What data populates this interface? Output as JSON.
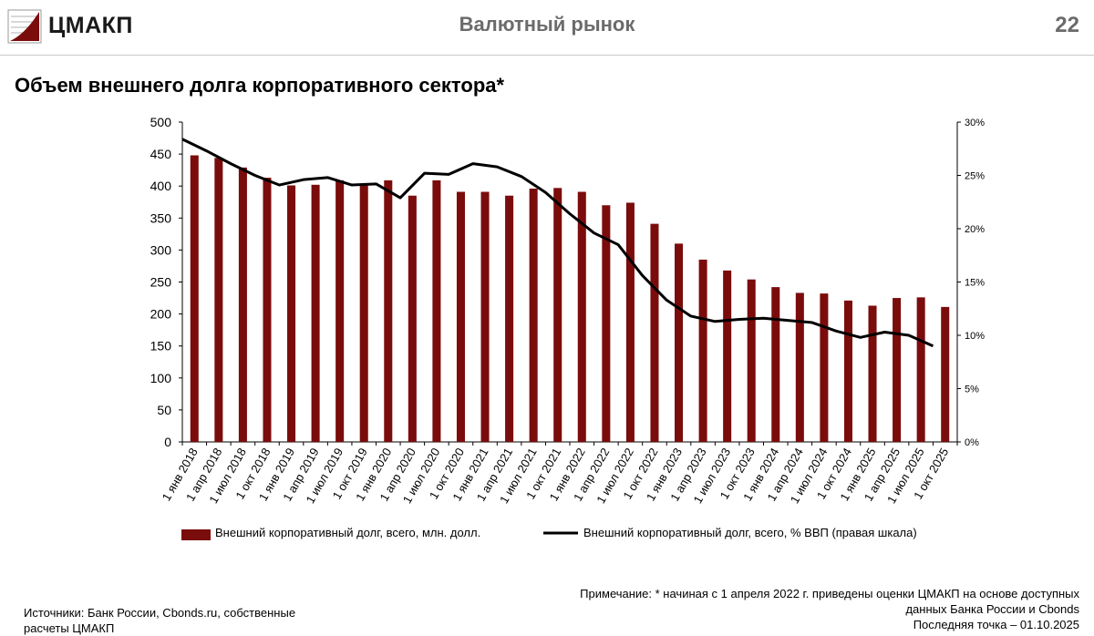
{
  "header": {
    "logo_text": "ЦМАКП",
    "section_title": "Валютный рынок",
    "page_number": "22"
  },
  "page_title": "Объем внешнего долга корпоративного сектора*",
  "chart_data": {
    "type": "bar+line",
    "categories": [
      "1 янв 2018",
      "1 апр 2018",
      "1 июл 2018",
      "1 окт 2018",
      "1 янв 2019",
      "1 апр 2019",
      "1 июл 2019",
      "1 окт 2019",
      "1 янв 2020",
      "1 апр 2020",
      "1 июл 2020",
      "1 окт 2020",
      "1 янв 2021",
      "1 апр 2021",
      "1 июл 2021",
      "1 окт 2021",
      "1 янв 2022",
      "1 апр 2022",
      "1 июл 2022",
      "1 окт 2022",
      "1 янв 2023",
      "1 апр 2023",
      "1 июл 2023",
      "1 окт 2023",
      "1 янв 2024",
      "1 апр 2024",
      "1 июл 2024",
      "1 окт 2024",
      "1 янв 2025",
      "1 апр 2025",
      "1 июл 2025",
      "1 окт 2025"
    ],
    "series": [
      {
        "name": "Внешний корпоративный долг, всего, млн. долл.",
        "type": "bar",
        "axis": "left",
        "color": "#7b0c0c",
        "values": [
          448,
          444,
          429,
          413,
          401,
          402,
          409,
          401,
          409,
          385,
          409,
          391,
          391,
          385,
          396,
          397,
          391,
          370,
          374,
          341,
          310,
          285,
          268,
          254,
          242,
          233,
          232,
          221,
          213,
          225,
          226,
          211
        ]
      },
      {
        "name": "Внешний корпоративный долг, всего, % ВВП (правая шкала)",
        "type": "line",
        "axis": "right",
        "color": "#000000",
        "values": [
          28.4,
          27.3,
          26.1,
          25.0,
          24.1,
          24.6,
          24.8,
          24.1,
          24.2,
          22.9,
          25.2,
          25.1,
          26.1,
          25.8,
          24.9,
          23.4,
          21.4,
          19.6,
          18.5,
          15.6,
          13.3,
          11.8,
          11.3,
          11.5,
          11.6,
          11.4,
          11.2,
          10.4,
          9.8,
          10.3,
          10.0,
          9.0
        ]
      }
    ],
    "yleft": {
      "min": 0,
      "max": 500,
      "ticks": [
        "0",
        "50",
        "100",
        "150",
        "200",
        "250",
        "300",
        "350",
        "400",
        "450",
        "500"
      ]
    },
    "yright": {
      "min": 0,
      "max": 30,
      "ticks": [
        "0%",
        "5%",
        "10%",
        "15%",
        "20%",
        "25%",
        "30%"
      ]
    },
    "grid": false,
    "legend_position": "bottom"
  },
  "legend": {
    "bar_label": "Внешний корпоративный долг, всего, млн. долл.",
    "line_label": "Внешний корпоративный долг, всего, % ВВП (правая шкала)"
  },
  "note_lines": [
    "Примечание: * начиная с 1 апреля 2022 г. приведены оценки ЦМАКП на основе доступных",
    "данных Банка России и Cbonds",
    "Последняя точка – 01.10.2025"
  ],
  "sources_lines": [
    "Источники: Банк России, Cbonds.ru, собственные",
    "расчеты ЦМАКП"
  ],
  "colors": {
    "bar": "#7b0c0c",
    "line": "#000000",
    "header_text": "#6b6b6b"
  }
}
